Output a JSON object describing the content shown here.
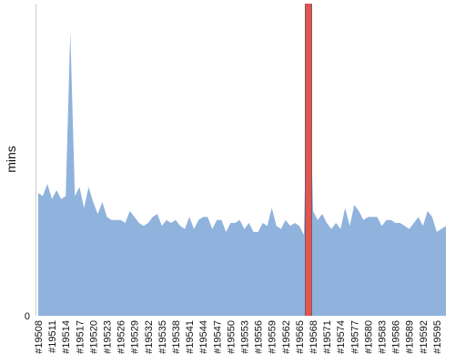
{
  "chart_data": {
    "type": "area",
    "xlabel": "",
    "ylabel": "mins",
    "y_tick_labels": [
      "0"
    ],
    "ylim": [
      0,
      100
    ],
    "grid": false,
    "colors": {
      "area": "#8fb3dc",
      "highlight": "#e8524f",
      "axis": "#cfcfcf"
    },
    "highlight_x": "#19567",
    "x_tick_labels": [
      "#19508",
      "#19511",
      "#19514",
      "#19517",
      "#19520",
      "#19523",
      "#19526",
      "#19529",
      "#19532",
      "#19535",
      "#19538",
      "#19541",
      "#19544",
      "#19547",
      "#19550",
      "#19553",
      "#19556",
      "#19559",
      "#19562",
      "#19565",
      "#19568",
      "#19571",
      "#19574",
      "#19577",
      "#19580",
      "#19583",
      "#19586",
      "#19589",
      "#19592",
      "#19595"
    ],
    "x": [
      "#19508",
      "#19509",
      "#19510",
      "#19511",
      "#19512",
      "#19513",
      "#19514",
      "#19515",
      "#19516",
      "#19517",
      "#19518",
      "#19519",
      "#19520",
      "#19521",
      "#19522",
      "#19523",
      "#19524",
      "#19525",
      "#19526",
      "#19527",
      "#19528",
      "#19529",
      "#19530",
      "#19531",
      "#19532",
      "#19533",
      "#19534",
      "#19535",
      "#19536",
      "#19537",
      "#19538",
      "#19539",
      "#19540",
      "#19541",
      "#19542",
      "#19543",
      "#19544",
      "#19545",
      "#19546",
      "#19547",
      "#19548",
      "#19549",
      "#19550",
      "#19551",
      "#19552",
      "#19553",
      "#19554",
      "#19555",
      "#19556",
      "#19557",
      "#19558",
      "#19559",
      "#19560",
      "#19561",
      "#19562",
      "#19563",
      "#19564",
      "#19565",
      "#19566",
      "#19567",
      "#19568",
      "#19569",
      "#19570",
      "#19571",
      "#19572",
      "#19573",
      "#19574",
      "#19575",
      "#19576",
      "#19577",
      "#19578",
      "#19579",
      "#19580",
      "#19581",
      "#19582",
      "#19583",
      "#19584",
      "#19585",
      "#19586",
      "#19587",
      "#19588",
      "#19589",
      "#19590",
      "#19591",
      "#19592",
      "#19593",
      "#19594",
      "#19595",
      "#19596",
      "#19597"
    ],
    "series": [
      {
        "values": [
          41,
          40,
          44,
          39,
          42,
          39,
          40,
          95,
          40,
          43,
          36,
          43,
          38,
          34,
          38,
          33,
          32,
          32,
          32,
          31,
          35,
          33,
          31,
          30,
          31,
          33,
          34,
          30,
          32,
          31,
          32,
          30,
          29,
          33,
          29,
          32,
          33,
          33,
          29,
          32,
          32,
          28,
          31,
          31,
          32,
          29,
          31,
          28,
          28,
          31,
          30,
          36,
          30,
          29,
          32,
          30,
          31,
          30,
          27,
          100,
          35,
          32,
          34,
          31,
          29,
          31,
          29,
          36,
          30,
          37,
          35,
          32,
          33,
          33,
          33,
          30,
          32,
          32,
          31,
          31,
          30,
          29,
          31,
          33,
          30,
          35,
          33,
          28,
          29,
          30
        ],
        "highlight_index": 59
      }
    ]
  }
}
